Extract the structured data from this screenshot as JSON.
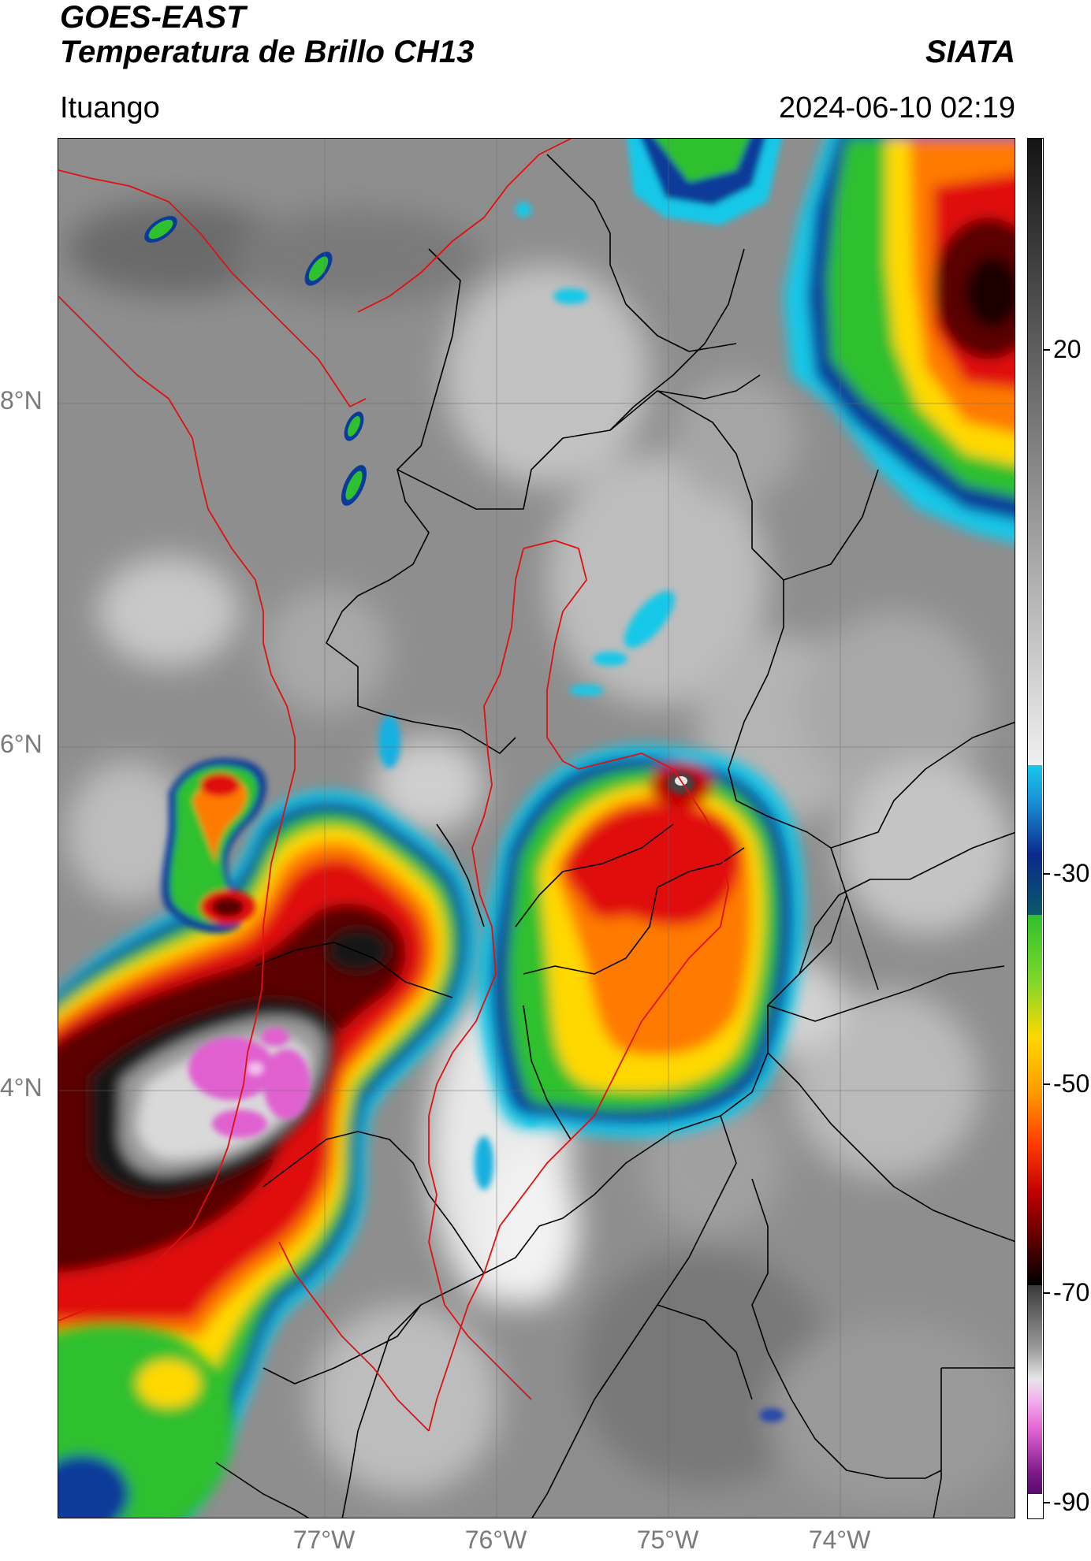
{
  "header": {
    "satellite": "GOES-EAST",
    "product": "Temperatura de Brillo CH13",
    "institution": "SIATA",
    "location": "Ituango",
    "datetime": "2024-06-10 02:19"
  },
  "map": {
    "lat_labels": [
      "8°N",
      "6°N",
      "4°N"
    ],
    "lon_labels": [
      "77°W",
      "76°W",
      "75°W",
      "74°W"
    ]
  },
  "colorbar": {
    "tick_labels": [
      "20",
      "-30",
      "-50",
      "-70",
      "-90"
    ],
    "ticks": [
      20,
      -30,
      -50,
      -70,
      -90
    ],
    "range": [
      -90,
      42
    ],
    "colors": {
      "warm_gray_top": "#141414",
      "light_gray": "#e6e6e6",
      "cyan": "#18c8e8",
      "dark_blue": "#0a2a8a",
      "green": "#2ec02e",
      "yellow": "#ffd800",
      "orange": "#ff7a00",
      "red": "#e01010",
      "dark_red": "#5a0000",
      "black": "#000000",
      "magenta": "#e060d0",
      "purple": "#7a1a8a"
    }
  }
}
